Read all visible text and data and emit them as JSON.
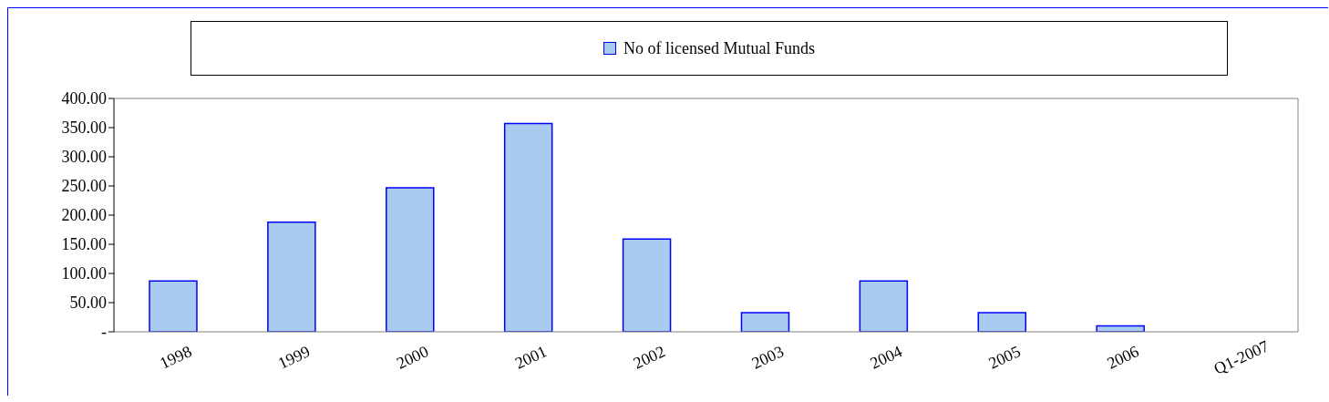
{
  "chart_data": {
    "type": "bar",
    "categories": [
      "1998",
      "1999",
      "2000",
      "2001",
      "2002",
      "2003",
      "2004",
      "2005",
      "2006",
      "Q1-2007"
    ],
    "series": [
      {
        "name": "No of licensed Mutual Funds",
        "color": "#a9cbf0",
        "values": [
          87,
          188,
          247,
          357,
          159,
          33,
          87,
          33,
          10,
          0
        ]
      }
    ],
    "ylim": [
      0,
      400
    ],
    "yticks": [
      {
        "value": 0,
        "label": "-"
      },
      {
        "value": 50,
        "label": "50.00"
      },
      {
        "value": 100,
        "label": "100.00"
      },
      {
        "value": 150,
        "label": "150.00"
      },
      {
        "value": 200,
        "label": "200.00"
      },
      {
        "value": 250,
        "label": "250.00"
      },
      {
        "value": 300,
        "label": "300.00"
      },
      {
        "value": 350,
        "label": "350.00"
      },
      {
        "value": 400,
        "label": "400.00"
      }
    ],
    "grid": false,
    "legend": "top"
  }
}
